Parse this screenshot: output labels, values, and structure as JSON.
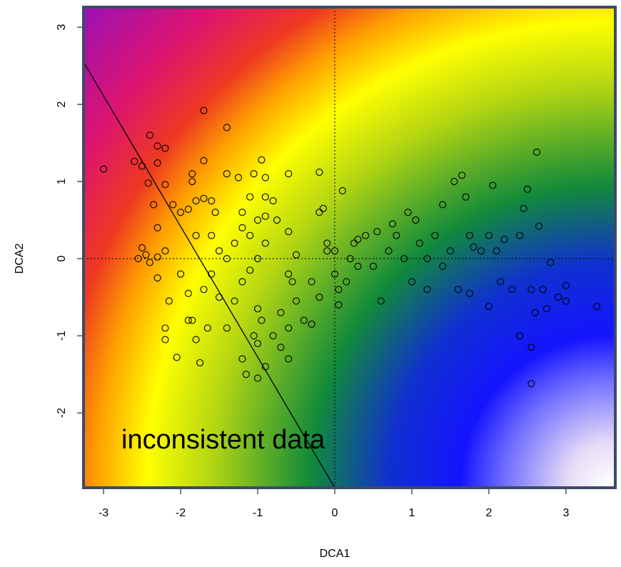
{
  "chart_data": {
    "type": "scatter",
    "xlabel": "DCA1",
    "ylabel": "DCA2",
    "annotation": "inconsistent data",
    "xlim": [
      -3.26,
      3.64
    ],
    "ylim": [
      -2.97,
      3.26
    ],
    "xticks": [
      -3,
      -2,
      -1,
      0,
      1,
      2,
      3
    ],
    "yticks": [
      -2,
      -1,
      0,
      1,
      2,
      3
    ],
    "point_color": "#000000",
    "reference_h": 0,
    "reference_v": 0,
    "fit_line": {
      "x": [
        -3.26,
        0
      ],
      "y": [
        2.55,
        -2.97
      ]
    },
    "x": [
      -3.0,
      -2.6,
      -2.5,
      -2.4,
      -2.3,
      -2.2,
      -2.42,
      -2.3,
      -2.35,
      -2.3,
      -2.5,
      -2.45,
      -2.4,
      -2.3,
      -2.2,
      -2.1,
      -2.0,
      -1.9,
      -1.85,
      -1.85,
      -1.7,
      -1.7,
      -1.4,
      -1.8,
      -1.7,
      -1.6,
      -1.55,
      -1.8,
      -1.6,
      -1.5,
      -1.4,
      -1.3,
      -1.2,
      -1.1,
      -1.0,
      -0.9,
      -0.9,
      -1.0,
      -0.95,
      -1.05,
      -0.9,
      -0.9,
      -0.8,
      -0.75,
      -0.6,
      -1.25,
      -1.4,
      -1.1,
      -1.2,
      -2.55,
      -2.3,
      -2.2,
      -2.0,
      -1.9,
      -1.9,
      -1.85,
      -2.15,
      -2.2,
      -2.2,
      -2.05,
      -1.75,
      -1.8,
      -1.65,
      -1.7,
      -1.6,
      -1.5,
      -1.4,
      -1.3,
      -1.2,
      -1.1,
      -1.0,
      -0.95,
      -1.05,
      -1.0,
      -1.2,
      -1.15,
      -1.0,
      -0.9,
      -0.8,
      -0.7,
      -0.7,
      -0.6,
      -0.6,
      -0.5,
      -0.55,
      -0.6,
      -0.5,
      -0.6,
      -0.4,
      -0.3,
      -0.3,
      -0.2,
      -0.2,
      -0.15,
      -0.2,
      -0.1,
      -0.1,
      0.0,
      0.05,
      0.05,
      0.1,
      0.15,
      0.2,
      0.25,
      0.3,
      0.4,
      0.5,
      0.55,
      0.6,
      0.7,
      0.75,
      0.8,
      0.9,
      1.0,
      1.05,
      1.1,
      1.2,
      1.3,
      1.4,
      1.5,
      1.55,
      1.6,
      1.65,
      1.7,
      1.75,
      1.8,
      1.9,
      2.0,
      2.05,
      2.1,
      2.15,
      2.2,
      2.3,
      2.4,
      2.45,
      2.5,
      2.55,
      2.6,
      2.62,
      2.65,
      2.7,
      2.75,
      2.8,
      2.9,
      3.0,
      3.0,
      3.4,
      2.55,
      2.55,
      2.4,
      2.0,
      1.75,
      1.4,
      0.95,
      1.2,
      0.3,
      0.0
    ],
    "y": [
      1.16,
      1.26,
      1.2,
      1.6,
      1.46,
      1.43,
      0.98,
      1.24,
      0.7,
      0.4,
      0.14,
      0.05,
      -0.05,
      0.02,
      0.96,
      0.7,
      0.6,
      0.64,
      1.1,
      1.0,
      1.27,
      1.92,
      1.7,
      0.75,
      0.78,
      0.75,
      0.6,
      0.3,
      0.3,
      0.1,
      0.0,
      0.2,
      0.4,
      0.3,
      0.5,
      0.55,
      0.2,
      0.0,
      1.28,
      1.1,
      1.05,
      0.8,
      0.75,
      0.5,
      1.1,
      1.05,
      1.1,
      0.8,
      0.6,
      0.0,
      -0.25,
      0.1,
      -0.2,
      -0.45,
      -0.8,
      -0.8,
      -0.55,
      -0.9,
      -1.05,
      -1.28,
      -1.35,
      -1.05,
      -0.9,
      -0.4,
      -0.2,
      -0.5,
      -0.9,
      -0.55,
      -0.3,
      -0.15,
      -0.65,
      -0.8,
      -1.0,
      -1.1,
      -1.3,
      -1.5,
      -1.55,
      -1.4,
      -1.0,
      -0.7,
      -1.15,
      -1.3,
      -0.9,
      -0.55,
      -0.3,
      -0.2,
      0.05,
      0.35,
      -0.8,
      -0.85,
      -0.3,
      -0.5,
      0.6,
      0.65,
      1.12,
      0.1,
      0.2,
      0.1,
      -0.4,
      -0.6,
      0.88,
      -0.3,
      0.0,
      0.2,
      -0.1,
      0.3,
      -0.1,
      0.35,
      -0.55,
      0.1,
      0.45,
      0.3,
      0.0,
      -0.3,
      0.5,
      0.2,
      0.0,
      0.3,
      0.7,
      0.1,
      1.0,
      -0.4,
      1.08,
      0.8,
      0.3,
      0.15,
      0.1,
      0.3,
      0.95,
      0.1,
      -0.3,
      0.25,
      -0.4,
      0.3,
      0.65,
      0.9,
      -0.4,
      -0.7,
      1.38,
      0.42,
      -0.4,
      -0.65,
      -0.05,
      -0.5,
      -0.35,
      -0.55,
      -0.62,
      -1.15,
      -1.62,
      -1.0,
      -0.62,
      -0.45,
      -0.1,
      0.6,
      -0.4,
      0.25,
      -0.2
    ]
  }
}
